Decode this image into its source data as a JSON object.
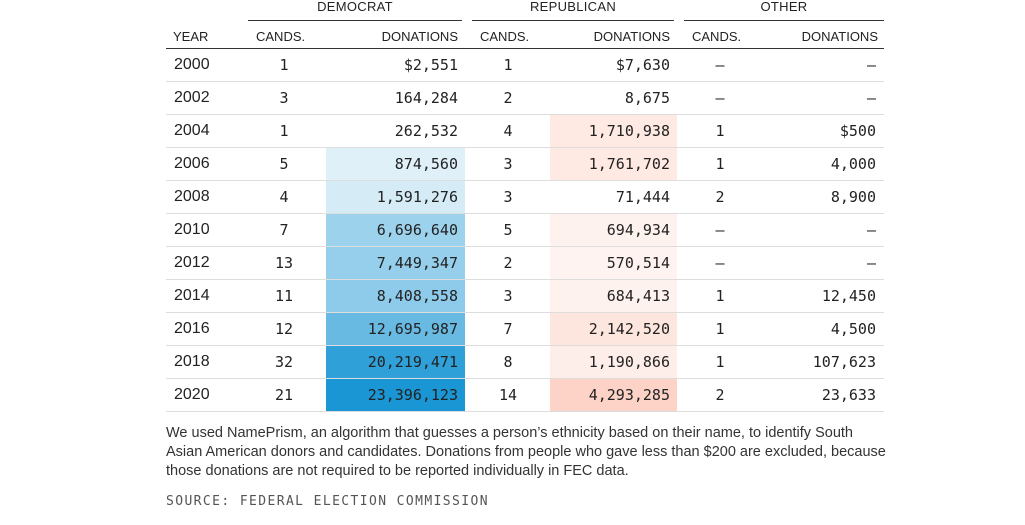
{
  "chart_data": {
    "type": "table",
    "group_headers": [
      "DEMOCRAT",
      "REPUBLICAN",
      "OTHER"
    ],
    "column_headers": [
      "YEAR",
      "CANDS.",
      "DONATIONS",
      "CANDS.",
      "DONATIONS",
      "CANDS.",
      "DONATIONS"
    ],
    "rows": [
      {
        "year": "2000",
        "dem_cands": "1",
        "dem_don": "$2,551",
        "rep_cands": "1",
        "rep_don": "$7,630",
        "oth_cands": "–",
        "oth_don": "–"
      },
      {
        "year": "2002",
        "dem_cands": "3",
        "dem_don": "164,284",
        "rep_cands": "2",
        "rep_don": "8,675",
        "oth_cands": "–",
        "oth_don": "–"
      },
      {
        "year": "2004",
        "dem_cands": "1",
        "dem_don": "262,532",
        "rep_cands": "4",
        "rep_don": "1,710,938",
        "oth_cands": "1",
        "oth_don": "$500"
      },
      {
        "year": "2006",
        "dem_cands": "5",
        "dem_don": "874,560",
        "rep_cands": "3",
        "rep_don": "1,761,702",
        "oth_cands": "1",
        "oth_don": "4,000"
      },
      {
        "year": "2008",
        "dem_cands": "4",
        "dem_don": "1,591,276",
        "rep_cands": "3",
        "rep_don": "71,444",
        "oth_cands": "2",
        "oth_don": "8,900"
      },
      {
        "year": "2010",
        "dem_cands": "7",
        "dem_don": "6,696,640",
        "rep_cands": "5",
        "rep_don": "694,934",
        "oth_cands": "–",
        "oth_don": "–"
      },
      {
        "year": "2012",
        "dem_cands": "13",
        "dem_don": "7,449,347",
        "rep_cands": "2",
        "rep_don": "570,514",
        "oth_cands": "–",
        "oth_don": "–"
      },
      {
        "year": "2014",
        "dem_cands": "11",
        "dem_don": "8,408,558",
        "rep_cands": "3",
        "rep_don": "684,413",
        "oth_cands": "1",
        "oth_don": "12,450"
      },
      {
        "year": "2016",
        "dem_cands": "12",
        "dem_don": "12,695,987",
        "rep_cands": "7",
        "rep_don": "2,142,520",
        "oth_cands": "1",
        "oth_don": "4,500"
      },
      {
        "year": "2018",
        "dem_cands": "32",
        "dem_don": "20,219,471",
        "rep_cands": "8",
        "rep_don": "1,190,866",
        "oth_cands": "1",
        "oth_don": "107,623"
      },
      {
        "year": "2020",
        "dem_cands": "21",
        "dem_don": "23,396,123",
        "rep_cands": "14",
        "rep_don": "4,293,285",
        "oth_cands": "2",
        "oth_don": "23,633"
      }
    ],
    "shading": {
      "dem_color": "#1a96d4",
      "rep_color": "#fcd3c6",
      "dem_max": 23396123,
      "rep_max": 4293285
    }
  },
  "footnote": "We used NamePrism, an algorithm that guesses a person’s ethnicity based on their name, to identify South Asian American donors and candidates. Donations from people who gave less than $200 are excluded, because those donations are not required to be reported individually in FEC data.",
  "source": "SOURCE: FEDERAL ELECTION COMMISSION"
}
